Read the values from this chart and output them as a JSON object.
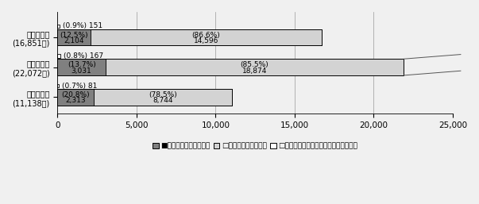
{
  "years": [
    {
      "label_line1": "令和２年度",
      "label_line2": "(16,851通)",
      "small_val": 151,
      "small_pct": "(0.9%)",
      "mid_val": 2104,
      "mid_pct": "(12.5%)",
      "large_val": 14596,
      "large_pct": "(86.6%)"
    },
    {
      "label_line1": "令和３年度",
      "label_line2": "(22,072通)",
      "small_val": 167,
      "small_pct": "(0.8%)",
      "mid_val": 3031,
      "mid_pct": "(13.7%)",
      "large_val": 18874,
      "large_pct": "(85.5%)"
    },
    {
      "label_line1": "令和４年度",
      "label_line2": "(11,138通)",
      "small_val": 81,
      "small_pct": "(0.7%)",
      "mid_val": 2313,
      "mid_pct": "(20.8%)",
      "large_val": 8744,
      "large_pct": "(78.5%)"
    }
  ],
  "legend_labels": [
    "■広聴部門で対応・回答",
    "□担当部で対応・回答",
    "□関係各部への送付（見解依頼を含む）"
  ],
  "colors_dark": "#808080",
  "colors_light": "#d3d3d3",
  "colors_white": "#ffffff",
  "bar_edgecolor": "#000000",
  "background_color": "#f0f0f0",
  "xlim_max": 25000,
  "xticks": [
    0,
    5000,
    10000,
    15000,
    20000,
    25000
  ],
  "xticklabels": [
    "0",
    "5,000",
    "10,000",
    "15,000",
    "20,000",
    "25,000"
  ]
}
